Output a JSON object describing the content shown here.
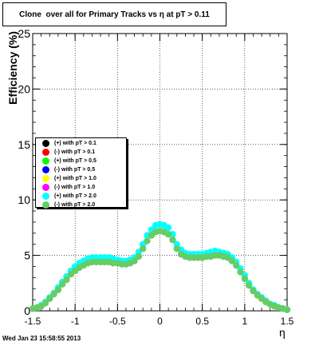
{
  "chart_data": {
    "type": "scatter",
    "title": "Clone  over all for Primary Tracks vs η at pT > 0.11",
    "xlabel": "η",
    "ylabel": "Efficiency (%)",
    "xlim": [
      -1.5,
      1.5
    ],
    "ylim": [
      0,
      25
    ],
    "x_ticks": [
      "-1.5",
      "-1",
      "-0.5",
      "0",
      "0.5",
      "1",
      "1.5"
    ],
    "y_ticks": [
      "0",
      "5",
      "10",
      "15",
      "20",
      "25"
    ],
    "grid": true,
    "legend_position": "left-middle",
    "legend": [
      {
        "label": "(+) with pT > 0.1",
        "color": "#000000"
      },
      {
        "label": "(-) with pT > 0.1",
        "color": "#ff0000"
      },
      {
        "label": "(+) with pT > 0.5",
        "color": "#00ff00"
      },
      {
        "label": "(-) with pT > 0.5",
        "color": "#0000ff"
      },
      {
        "label": "(+) with pT > 1.0",
        "color": "#ffff00"
      },
      {
        "label": "(-) with pT > 1.0",
        "color": "#ff00ff"
      },
      {
        "label": "(+) with pT > 2.0",
        "color": "#00ffff"
      },
      {
        "label": "(-) with pT > 2.0",
        "color": "#66cc66"
      }
    ],
    "series": [
      {
        "color": "#00ffff",
        "x": [
          -1.5,
          -1.45,
          -1.4,
          -1.35,
          -1.3,
          -1.25,
          -1.2,
          -1.15,
          -1.1,
          -1.05,
          -1.0,
          -0.95,
          -0.9,
          -0.85,
          -0.8,
          -0.75,
          -0.7,
          -0.65,
          -0.6,
          -0.55,
          -0.5,
          -0.45,
          -0.4,
          -0.35,
          -0.3,
          -0.25,
          -0.2,
          -0.15,
          -0.1,
          -0.05,
          0.0,
          0.05,
          0.1,
          0.15,
          0.2,
          0.25,
          0.3,
          0.35,
          0.4,
          0.45,
          0.5,
          0.55,
          0.6,
          0.65,
          0.7,
          0.75,
          0.8,
          0.85,
          0.9,
          0.95,
          1.0,
          1.05,
          1.1,
          1.15,
          1.2,
          1.25,
          1.3,
          1.35,
          1.4,
          1.45,
          1.5
        ],
        "y": [
          0.2,
          0.3,
          0.5,
          0.8,
          1.2,
          1.6,
          2.1,
          2.6,
          3.1,
          3.6,
          4.0,
          4.3,
          4.5,
          4.7,
          4.8,
          4.8,
          4.8,
          4.8,
          4.8,
          4.7,
          4.6,
          4.5,
          4.5,
          4.6,
          4.8,
          5.3,
          6.0,
          6.8,
          7.3,
          7.7,
          7.8,
          7.7,
          7.5,
          6.9,
          6.0,
          5.5,
          5.2,
          5.1,
          5.1,
          5.1,
          5.1,
          5.2,
          5.3,
          5.4,
          5.3,
          5.2,
          5.1,
          4.8,
          4.4,
          3.8,
          3.2,
          2.5,
          1.9,
          1.5,
          1.2,
          0.9,
          0.6,
          0.5,
          0.3,
          0.2,
          0.1
        ]
      },
      {
        "color": "#66cc66",
        "x": [
          -1.5,
          -1.45,
          -1.4,
          -1.35,
          -1.3,
          -1.25,
          -1.2,
          -1.15,
          -1.1,
          -1.05,
          -1.0,
          -0.95,
          -0.9,
          -0.85,
          -0.8,
          -0.75,
          -0.7,
          -0.65,
          -0.6,
          -0.55,
          -0.5,
          -0.45,
          -0.4,
          -0.35,
          -0.3,
          -0.25,
          -0.2,
          -0.15,
          -0.1,
          -0.05,
          0.0,
          0.05,
          0.1,
          0.15,
          0.2,
          0.25,
          0.3,
          0.35,
          0.4,
          0.45,
          0.5,
          0.55,
          0.6,
          0.65,
          0.7,
          0.75,
          0.8,
          0.85,
          0.9,
          0.95,
          1.0,
          1.05,
          1.1,
          1.15,
          1.2,
          1.25,
          1.3,
          1.35,
          1.4,
          1.45,
          1.5
        ],
        "y": [
          0.2,
          0.3,
          0.4,
          0.7,
          1.1,
          1.5,
          1.9,
          2.4,
          2.8,
          3.3,
          3.6,
          3.9,
          4.1,
          4.3,
          4.4,
          4.4,
          4.4,
          4.4,
          4.4,
          4.3,
          4.3,
          4.2,
          4.2,
          4.3,
          4.5,
          4.9,
          5.6,
          6.3,
          6.8,
          7.1,
          7.2,
          7.1,
          6.9,
          6.4,
          5.6,
          5.1,
          4.9,
          4.8,
          4.8,
          4.8,
          4.8,
          4.9,
          4.9,
          5.0,
          5.0,
          4.9,
          4.8,
          4.5,
          4.1,
          3.5,
          2.9,
          2.3,
          1.8,
          1.4,
          1.1,
          0.8,
          0.6,
          0.4,
          0.3,
          0.2,
          0.1
        ]
      }
    ]
  },
  "footer_text": "Wed Jan 23 15:58:55 2013"
}
